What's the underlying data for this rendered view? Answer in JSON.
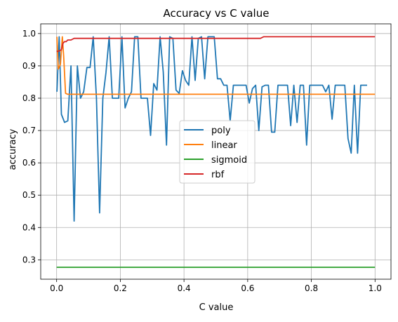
{
  "chart_data": {
    "type": "line",
    "title": "Accuracy vs C value",
    "xlabel": "C value",
    "ylabel": "accuracy",
    "xlim": [
      -0.05,
      1.05
    ],
    "ylim": [
      0.24,
      1.03
    ],
    "xticks": [
      0.0,
      0.2,
      0.4,
      0.6,
      0.8,
      1.0
    ],
    "xtick_labels": [
      "0.0",
      "0.2",
      "0.4",
      "0.6",
      "0.8",
      "1.0"
    ],
    "yticks": [
      0.3,
      0.4,
      0.5,
      0.6,
      0.7,
      0.8,
      0.9,
      1.0
    ],
    "ytick_labels": [
      "0.3",
      "0.4",
      "0.5",
      "0.6",
      "0.7",
      "0.8",
      "0.9",
      "1.0"
    ],
    "grid": true,
    "legend_position": "center-right",
    "series": [
      {
        "name": "poly",
        "color": "#1f77b4",
        "points": [
          [
            0.001,
            0.82
          ],
          [
            0.008,
            0.99
          ],
          [
            0.015,
            0.75
          ],
          [
            0.025,
            0.725
          ],
          [
            0.035,
            0.73
          ],
          [
            0.045,
            0.9
          ],
          [
            0.055,
            0.42
          ],
          [
            0.065,
            0.9
          ],
          [
            0.075,
            0.8
          ],
          [
            0.085,
            0.82
          ],
          [
            0.095,
            0.895
          ],
          [
            0.105,
            0.895
          ],
          [
            0.115,
            0.99
          ],
          [
            0.125,
            0.8
          ],
          [
            0.135,
            0.445
          ],
          [
            0.145,
            0.8
          ],
          [
            0.155,
            0.88
          ],
          [
            0.165,
            0.99
          ],
          [
            0.175,
            0.8
          ],
          [
            0.185,
            0.8
          ],
          [
            0.195,
            0.8
          ],
          [
            0.205,
            0.99
          ],
          [
            0.215,
            0.77
          ],
          [
            0.225,
            0.8
          ],
          [
            0.235,
            0.82
          ],
          [
            0.245,
            0.99
          ],
          [
            0.255,
            0.99
          ],
          [
            0.265,
            0.8
          ],
          [
            0.275,
            0.8
          ],
          [
            0.285,
            0.8
          ],
          [
            0.295,
            0.685
          ],
          [
            0.305,
            0.845
          ],
          [
            0.315,
            0.825
          ],
          [
            0.325,
            0.99
          ],
          [
            0.335,
            0.88
          ],
          [
            0.345,
            0.655
          ],
          [
            0.355,
            0.99
          ],
          [
            0.365,
            0.985
          ],
          [
            0.375,
            0.825
          ],
          [
            0.385,
            0.815
          ],
          [
            0.395,
            0.885
          ],
          [
            0.405,
            0.855
          ],
          [
            0.415,
            0.84
          ],
          [
            0.425,
            0.99
          ],
          [
            0.435,
            0.855
          ],
          [
            0.445,
            0.985
          ],
          [
            0.455,
            0.99
          ],
          [
            0.465,
            0.86
          ],
          [
            0.475,
            0.99
          ],
          [
            0.485,
            0.99
          ],
          [
            0.495,
            0.99
          ],
          [
            0.505,
            0.86
          ],
          [
            0.515,
            0.86
          ],
          [
            0.525,
            0.84
          ],
          [
            0.535,
            0.84
          ],
          [
            0.545,
            0.73
          ],
          [
            0.555,
            0.84
          ],
          [
            0.565,
            0.84
          ],
          [
            0.575,
            0.84
          ],
          [
            0.585,
            0.84
          ],
          [
            0.595,
            0.84
          ],
          [
            0.605,
            0.785
          ],
          [
            0.615,
            0.83
          ],
          [
            0.625,
            0.84
          ],
          [
            0.635,
            0.7
          ],
          [
            0.645,
            0.835
          ],
          [
            0.655,
            0.84
          ],
          [
            0.665,
            0.84
          ],
          [
            0.675,
            0.695
          ],
          [
            0.685,
            0.695
          ],
          [
            0.695,
            0.84
          ],
          [
            0.705,
            0.84
          ],
          [
            0.715,
            0.84
          ],
          [
            0.725,
            0.84
          ],
          [
            0.735,
            0.715
          ],
          [
            0.745,
            0.84
          ],
          [
            0.755,
            0.725
          ],
          [
            0.765,
            0.84
          ],
          [
            0.775,
            0.84
          ],
          [
            0.785,
            0.655
          ],
          [
            0.795,
            0.84
          ],
          [
            0.805,
            0.84
          ],
          [
            0.815,
            0.84
          ],
          [
            0.825,
            0.84
          ],
          [
            0.835,
            0.84
          ],
          [
            0.845,
            0.82
          ],
          [
            0.855,
            0.84
          ],
          [
            0.865,
            0.735
          ],
          [
            0.875,
            0.84
          ],
          [
            0.885,
            0.84
          ],
          [
            0.895,
            0.84
          ],
          [
            0.905,
            0.84
          ],
          [
            0.915,
            0.675
          ],
          [
            0.925,
            0.63
          ],
          [
            0.935,
            0.84
          ],
          [
            0.945,
            0.63
          ],
          [
            0.955,
            0.84
          ],
          [
            0.965,
            0.84
          ],
          [
            0.975,
            0.84
          ]
        ]
      },
      {
        "name": "linear",
        "color": "#ff7f0e",
        "points": [
          [
            0.001,
            0.99
          ],
          [
            0.005,
            0.89
          ],
          [
            0.012,
            0.905
          ],
          [
            0.018,
            0.99
          ],
          [
            0.022,
            0.93
          ],
          [
            0.028,
            0.815
          ],
          [
            0.035,
            0.812
          ],
          [
            0.1,
            0.812
          ],
          [
            0.2,
            0.812
          ],
          [
            0.3,
            0.812
          ],
          [
            0.4,
            0.812
          ],
          [
            0.5,
            0.812
          ],
          [
            0.6,
            0.812
          ],
          [
            0.7,
            0.812
          ],
          [
            0.8,
            0.812
          ],
          [
            0.9,
            0.812
          ],
          [
            1.0,
            0.812
          ]
        ]
      },
      {
        "name": "sigmoid",
        "color": "#2ca02c",
        "points": [
          [
            0.0,
            0.277
          ],
          [
            1.0,
            0.277
          ]
        ]
      },
      {
        "name": "rbf",
        "color": "#d62728",
        "points": [
          [
            0.0,
            0.945
          ],
          [
            0.005,
            0.945
          ],
          [
            0.015,
            0.95
          ],
          [
            0.02,
            0.97
          ],
          [
            0.025,
            0.975
          ],
          [
            0.03,
            0.975
          ],
          [
            0.035,
            0.98
          ],
          [
            0.045,
            0.98
          ],
          [
            0.055,
            0.985
          ],
          [
            0.1,
            0.985
          ],
          [
            0.2,
            0.985
          ],
          [
            0.3,
            0.985
          ],
          [
            0.4,
            0.985
          ],
          [
            0.5,
            0.985
          ],
          [
            0.6,
            0.985
          ],
          [
            0.64,
            0.985
          ],
          [
            0.65,
            0.99
          ],
          [
            0.7,
            0.99
          ],
          [
            0.8,
            0.99
          ],
          [
            0.9,
            0.99
          ],
          [
            1.0,
            0.99
          ]
        ]
      }
    ]
  }
}
